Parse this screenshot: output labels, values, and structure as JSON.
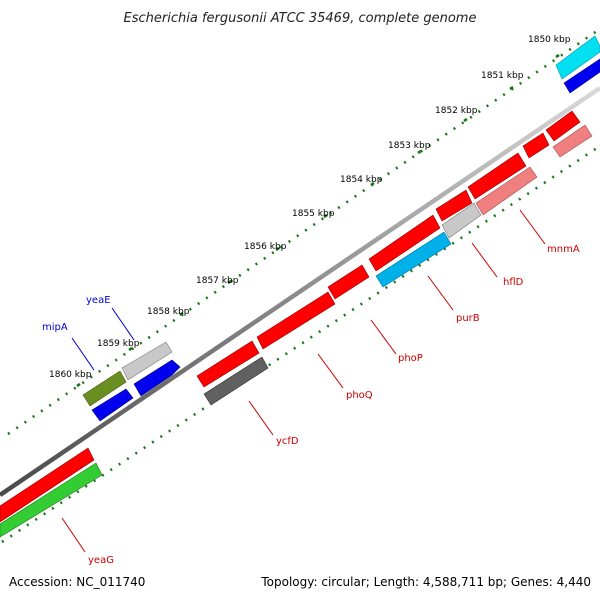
{
  "title": "Escherichia fergusonii ATCC 35469, complete genome",
  "footer": {
    "accession": "Accession: NC_011740",
    "topology": "Topology: circular; Length: 4,588,711 bp; Genes: 4,440"
  },
  "colors": {
    "backbone": "#8c8c8c",
    "ruler_dots": "#1a7a1a",
    "label_line_plus": "#0000cc",
    "label_line_minus": "#cc0000"
  },
  "ruler_labels": [
    "1850 kbp",
    "1851 kbp",
    "1852 kbp",
    "1853 kbp",
    "1854 kbp",
    "1855 kbp",
    "1856 kbp",
    "1857 kbp",
    "1858 kbp",
    "1859 kbp",
    "1860 kbp"
  ],
  "gene_labels": {
    "yeaE": "yeaE",
    "mipA": "mipA",
    "mnmA": "mnmA",
    "hflD": "hflD",
    "purB": "purB",
    "phoP": "phoP",
    "phoQ": "phoQ",
    "ycfD": "ycfD",
    "yeaG": "yeaG"
  }
}
